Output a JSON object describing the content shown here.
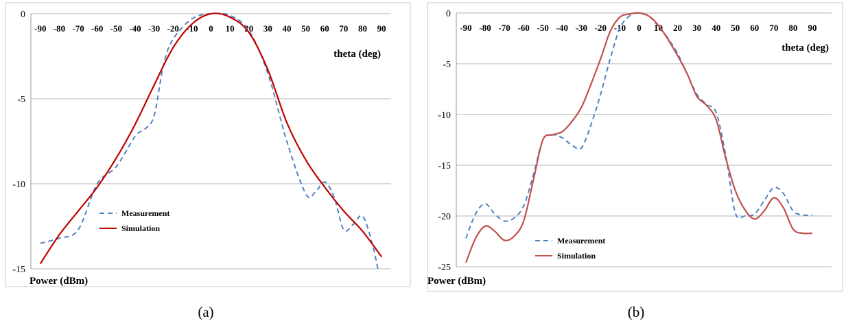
{
  "chart_data": [
    {
      "type": "line",
      "caption": "(a)",
      "xlabel": "theta (deg)",
      "ylabel": "Power (dBm)",
      "xlim": [
        -95,
        95
      ],
      "ylim": [
        -15,
        0
      ],
      "xticks": [
        "-90",
        "-80",
        "-70",
        "-60",
        "-50",
        "-40",
        "-30",
        "-20",
        "-10",
        "0",
        "10",
        "20",
        "30",
        "40",
        "50",
        "60",
        "70",
        "80",
        "90"
      ],
      "yticks": [
        "0",
        "-5",
        "-10",
        "-15"
      ],
      "grid": "horizontal",
      "legend_position": "bottom-left",
      "series": [
        {
          "name": "Measurement",
          "style": "dashed",
          "color": "#4F81BD",
          "x": [
            -90,
            -80,
            -70,
            -60,
            -50,
            -40,
            -35,
            -30,
            -25,
            -20,
            -10,
            0,
            10,
            20,
            30,
            40,
            50,
            55,
            60,
            65,
            70,
            75,
            80,
            85,
            88
          ],
          "y": [
            -13.5,
            -13.2,
            -12.7,
            -10,
            -9,
            -7.2,
            -6.8,
            -6,
            -3,
            -1.5,
            -0.3,
            0,
            -0.1,
            -1,
            -3.5,
            -7.5,
            -10.6,
            -10.5,
            -9.9,
            -10.8,
            -12.7,
            -12.4,
            -11.9,
            -13.5,
            -15
          ]
        },
        {
          "name": "Simulation",
          "style": "solid",
          "color": "#C00000",
          "x": [
            -90,
            -80,
            -70,
            -60,
            -50,
            -40,
            -30,
            -20,
            -10,
            0,
            10,
            20,
            30,
            40,
            50,
            60,
            70,
            80,
            90
          ],
          "y": [
            -14.7,
            -13,
            -11.6,
            -10.2,
            -8.5,
            -6.5,
            -4.2,
            -2,
            -0.6,
            0,
            -0.2,
            -1.1,
            -3.3,
            -6.4,
            -8.6,
            -10.2,
            -11.6,
            -12.8,
            -14.3
          ]
        }
      ]
    },
    {
      "type": "line",
      "caption": "(b)",
      "xlabel": "theta (deg)",
      "ylabel": "Power (dBm)",
      "xlim": [
        -95,
        100
      ],
      "ylim": [
        -25,
        0
      ],
      "xticks": [
        "-90",
        "-80",
        "-70",
        "-60",
        "-50",
        "-40",
        "-30",
        "-20",
        "-10",
        "0",
        "10",
        "20",
        "30",
        "40",
        "50",
        "60",
        "70",
        "80",
        "90"
      ],
      "yticks": [
        "0",
        "-5",
        "-10",
        "-15",
        "-20",
        "-25"
      ],
      "grid": "horizontal",
      "legend_position": "bottom-left",
      "series": [
        {
          "name": "Measurement",
          "style": "dashed",
          "color": "#4F81BD",
          "x": [
            -90,
            -85,
            -80,
            -75,
            -70,
            -65,
            -60,
            -55,
            -50,
            -45,
            -40,
            -35,
            -30,
            -25,
            -20,
            -15,
            -10,
            -5,
            0,
            5,
            10,
            15,
            20,
            25,
            30,
            35,
            40,
            45,
            50,
            55,
            60,
            65,
            70,
            75,
            80,
            85,
            90
          ],
          "y": [
            -22.2,
            -19.8,
            -18.8,
            -19.8,
            -20.5,
            -20.2,
            -19,
            -16,
            -12.5,
            -12,
            -12.3,
            -13,
            -13.3,
            -11,
            -8,
            -4.5,
            -1.5,
            -0.3,
            0,
            -0.3,
            -1.3,
            -2.5,
            -4,
            -6,
            -8,
            -9,
            -9.8,
            -14,
            -19.7,
            -20,
            -19.8,
            -18.5,
            -17.2,
            -17.8,
            -19.5,
            -19.9,
            -19.9
          ]
        },
        {
          "name": "Simulation",
          "style": "solid",
          "color": "#C0504D",
          "x": [
            -90,
            -85,
            -80,
            -75,
            -70,
            -65,
            -60,
            -55,
            -50,
            -45,
            -40,
            -35,
            -30,
            -25,
            -20,
            -15,
            -10,
            -5,
            0,
            5,
            10,
            15,
            20,
            25,
            30,
            35,
            40,
            45,
            50,
            55,
            60,
            65,
            70,
            75,
            80,
            85,
            90
          ],
          "y": [
            -24.6,
            -22.2,
            -21,
            -21.5,
            -22.4,
            -22,
            -20.5,
            -16.5,
            -12.5,
            -12,
            -11.7,
            -10.7,
            -9.3,
            -7,
            -4.5,
            -1.8,
            -0.4,
            -0.1,
            0,
            -0.3,
            -1.2,
            -2.6,
            -4.2,
            -6,
            -8.2,
            -9.1,
            -10.5,
            -14.3,
            -17.5,
            -19.4,
            -20.3,
            -19.5,
            -18.2,
            -19.2,
            -21.3,
            -21.7,
            -21.7
          ]
        }
      ]
    }
  ]
}
